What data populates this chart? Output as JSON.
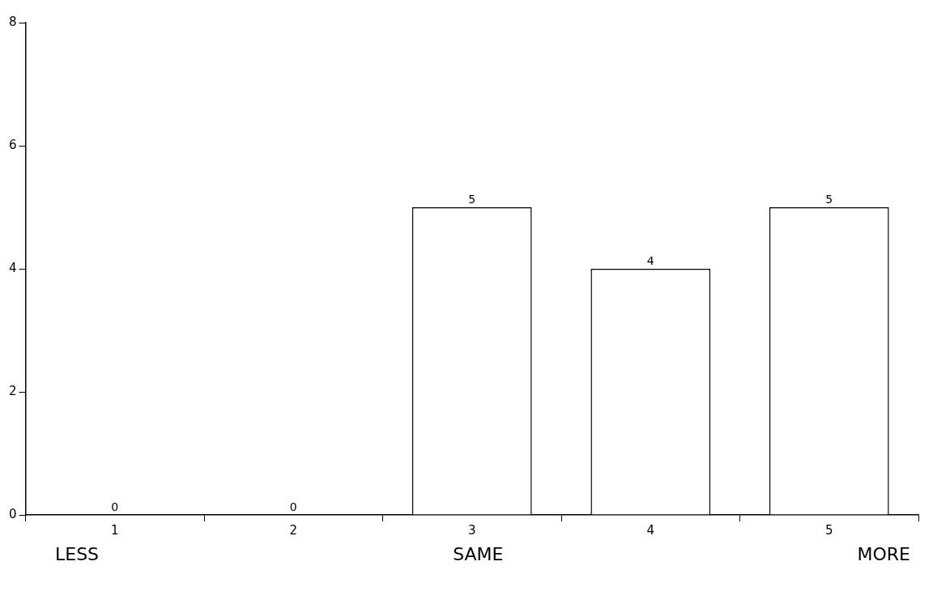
{
  "chart_data": {
    "type": "bar",
    "categories": [
      "1",
      "2",
      "3",
      "4",
      "5"
    ],
    "values": [
      0,
      0,
      5,
      4,
      5
    ],
    "color": "#ffffff",
    "ylim": [
      0,
      8
    ],
    "yticks": [
      0,
      2,
      4,
      6,
      8
    ],
    "grid": false,
    "legend": false,
    "data_labels": true,
    "annotations": [
      "LESS",
      "SAME",
      "MORE"
    ]
  }
}
